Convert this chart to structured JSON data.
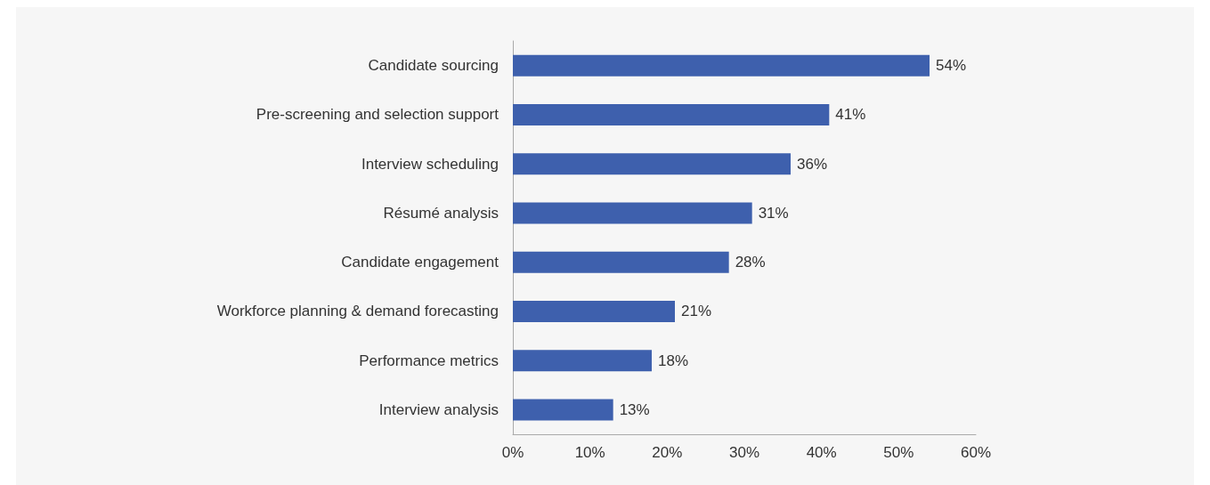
{
  "chart_data": {
    "type": "bar",
    "orientation": "horizontal",
    "categories": [
      "Candidate sourcing",
      "Pre-screening and selection support",
      "Interview scheduling",
      "Résumé analysis",
      "Candidate engagement",
      "Workforce planning & demand forecasting",
      "Performance metrics",
      "Interview analysis"
    ],
    "values": [
      54,
      41,
      36,
      31,
      28,
      21,
      18,
      13
    ],
    "value_labels": [
      "54%",
      "41%",
      "36%",
      "31%",
      "28%",
      "21%",
      "18%",
      "13%"
    ],
    "color": "#3e60ad",
    "xlim": [
      0,
      60
    ],
    "xticks": [
      {
        "value": 0,
        "label": "0%"
      },
      {
        "value": 10,
        "label": "10%"
      },
      {
        "value": 20,
        "label": "20%"
      },
      {
        "value": 30,
        "label": "30%"
      },
      {
        "value": 40,
        "label": "40%"
      },
      {
        "value": 50,
        "label": "50%"
      },
      {
        "value": 60,
        "label": "60%"
      }
    ],
    "grid": false
  }
}
